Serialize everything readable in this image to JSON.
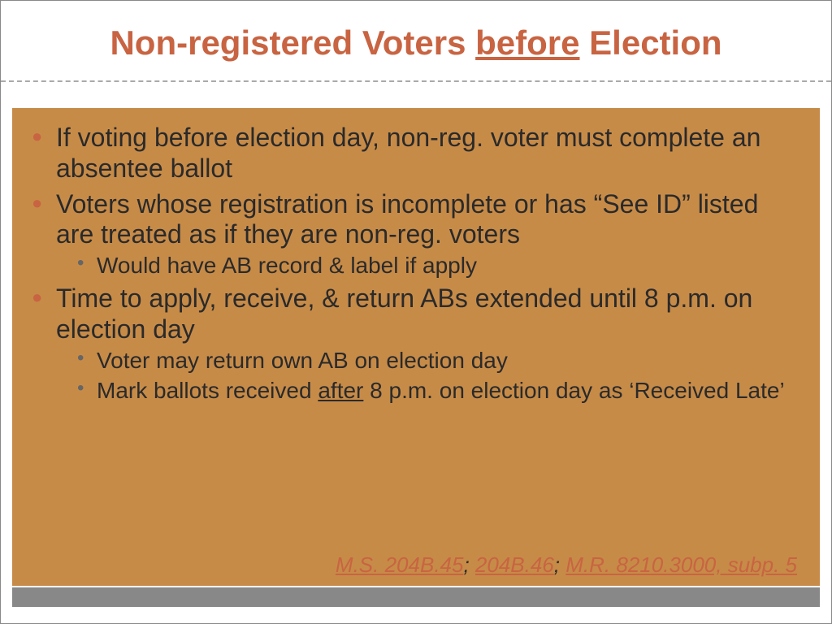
{
  "colors": {
    "accent": "#c86442",
    "body_bg": "#c78b48",
    "text": "#2a2a2a",
    "sub_bullet": "#666666",
    "divider": "#aaaaaa",
    "footer_bar": "#888888",
    "slide_border": "#888888"
  },
  "typography": {
    "title_fontsize": 42,
    "main_bullet_fontsize": 32,
    "sub_bullet_fontsize": 28,
    "citation_fontsize": 26,
    "font_family": "Arial"
  },
  "title": {
    "part1": "Non-registered Voters ",
    "underlined": "before",
    "part3": " Election"
  },
  "bullets": {
    "b1": "If voting before election day, non-reg. voter must complete an absentee ballot",
    "b2": "Voters whose registration is incomplete or has “See ID” listed are treated as if they are non-reg. voters",
    "b2_sub1": "Would have AB record & label if apply",
    "b3": "Time to apply, receive, & return ABs extended until 8 p.m. on election day",
    "b3_sub1": "Voter may return own AB on election day",
    "b3_sub2_pre": "Mark ballots received ",
    "b3_sub2_under": "after",
    "b3_sub2_post": " 8 p.m. on election day as ‘Received Late’"
  },
  "citation": {
    "c1": "M.S. 204B.45",
    "sep1": "; ",
    "c2": "204B.46",
    "sep2": "; ",
    "c3": "M.R. 8210.3000, subp. 5"
  }
}
